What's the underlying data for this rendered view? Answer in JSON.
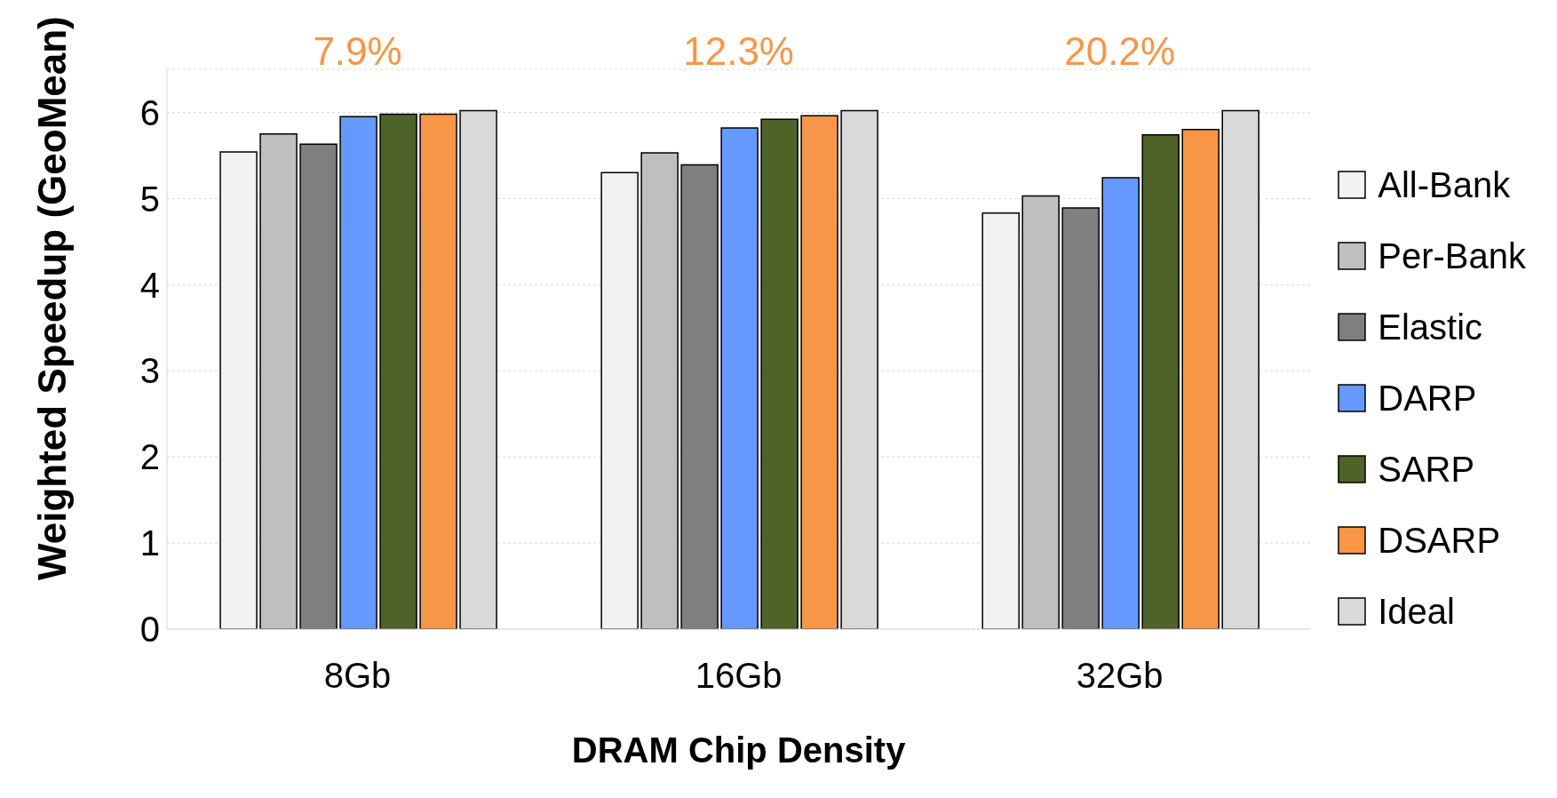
{
  "chart_data": {
    "type": "bar",
    "xlabel": "DRAM Chip Density",
    "ylabel": "Weighted Speedup (GeoMean)",
    "categories": [
      "8Gb",
      "16Gb",
      "32Gb"
    ],
    "series": [
      {
        "name": "All-Bank",
        "color": "#f2f2f2",
        "values": [
          5.54,
          5.3,
          4.83
        ]
      },
      {
        "name": "Per-Bank",
        "color": "#bfbfbf",
        "values": [
          5.75,
          5.53,
          5.03
        ]
      },
      {
        "name": "Elastic",
        "color": "#7f7f7f",
        "values": [
          5.63,
          5.39,
          4.89
        ]
      },
      {
        "name": "DARP",
        "color": "#6699ff",
        "values": [
          5.95,
          5.82,
          5.24
        ]
      },
      {
        "name": "SARP",
        "color": "#4f6228",
        "values": [
          5.98,
          5.92,
          5.74
        ]
      },
      {
        "name": "DSARP",
        "color": "#f79646",
        "values": [
          5.98,
          5.96,
          5.8
        ]
      },
      {
        "name": "Ideal",
        "color": "#d9d9d9",
        "values": [
          6.02,
          6.02,
          6.02
        ]
      }
    ],
    "ylim": [
      0,
      6.5
    ],
    "yticks": [
      0,
      1,
      2,
      3,
      4,
      5,
      6
    ],
    "grid": "y",
    "legend": "right",
    "annotations": [
      "7.9%",
      "12.3%",
      "20.2%"
    ]
  }
}
